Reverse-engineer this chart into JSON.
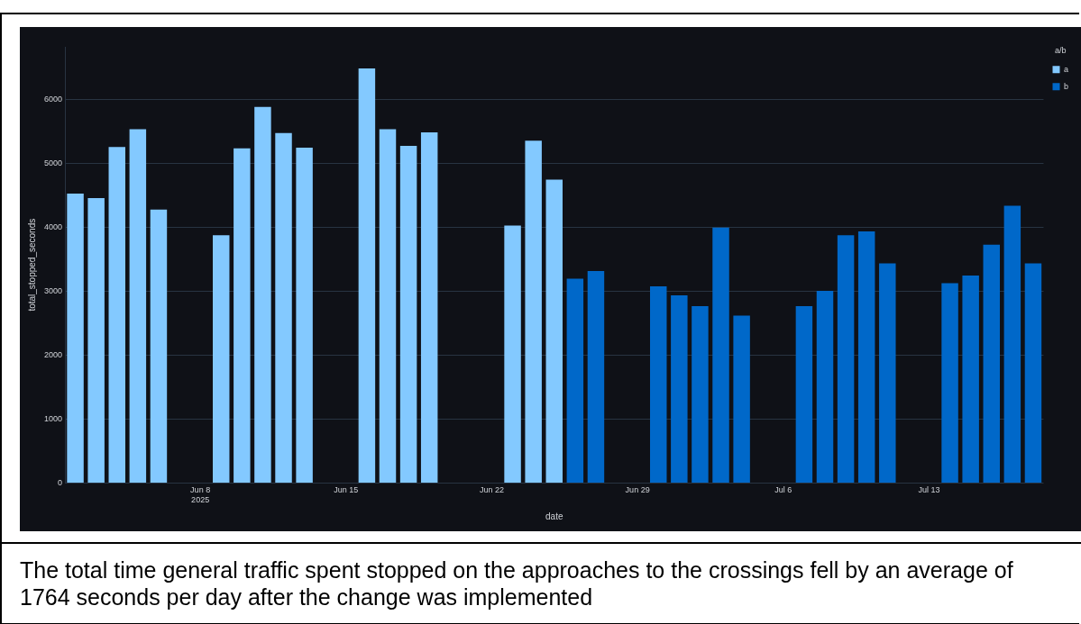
{
  "chart_data": {
    "type": "bar",
    "xlabel": "date",
    "ylabel": "total_stopped_seconds",
    "legend_title": "a/b",
    "annotations": [
      "The total time general traffic spent stopped on the approaches to the crossings fell by an average of 1764 seconds per day after the change was implemented"
    ],
    "series": [
      {
        "name": "a",
        "color": "#83c9ff",
        "x": [
          "2025-06-02",
          "2025-06-03",
          "2025-06-04",
          "2025-06-05",
          "2025-06-06",
          "2025-06-09",
          "2025-06-10",
          "2025-06-11",
          "2025-06-12",
          "2025-06-13",
          "2025-06-16",
          "2025-06-17",
          "2025-06-18",
          "2025-06-19",
          "2025-06-23",
          "2025-06-24",
          "2025-06-25"
        ],
        "values": [
          4530,
          4460,
          5260,
          5540,
          4280,
          3880,
          5240,
          5890,
          5480,
          5250,
          6490,
          5540,
          5280,
          5490,
          4030,
          5360,
          4750
        ]
      },
      {
        "name": "b",
        "color": "#0068c9",
        "x": [
          "2025-06-26",
          "2025-06-27",
          "2025-06-30",
          "2025-07-01",
          "2025-07-02",
          "2025-07-03",
          "2025-07-04",
          "2025-07-07",
          "2025-07-08",
          "2025-07-09",
          "2025-07-10",
          "2025-07-11",
          "2025-07-14",
          "2025-07-15",
          "2025-07-16",
          "2025-07-17",
          "2025-07-18"
        ],
        "values": [
          3200,
          3320,
          3080,
          2940,
          2770,
          4000,
          2620,
          2770,
          3010,
          3880,
          3940,
          3440,
          3130,
          3250,
          3730,
          4340,
          3440
        ]
      }
    ],
    "xlim": [
      "2025-06-01T12:00",
      "2025-07-18T12:00"
    ],
    "xticks": [
      {
        "value": "2025-06-08",
        "label": "Jun 8\n2025"
      },
      {
        "value": "2025-06-15",
        "label": "Jun 15"
      },
      {
        "value": "2025-06-22",
        "label": "Jun 22"
      },
      {
        "value": "2025-06-29",
        "label": "Jun 29"
      },
      {
        "value": "2025-07-06",
        "label": "Jul 6"
      },
      {
        "value": "2025-07-13",
        "label": "Jul 13"
      }
    ],
    "ylim": [
      0,
      6830
    ],
    "yticks": [
      0,
      1000,
      2000,
      3000,
      4000,
      5000,
      6000
    ],
    "grid": "y",
    "legend": "top right"
  }
}
